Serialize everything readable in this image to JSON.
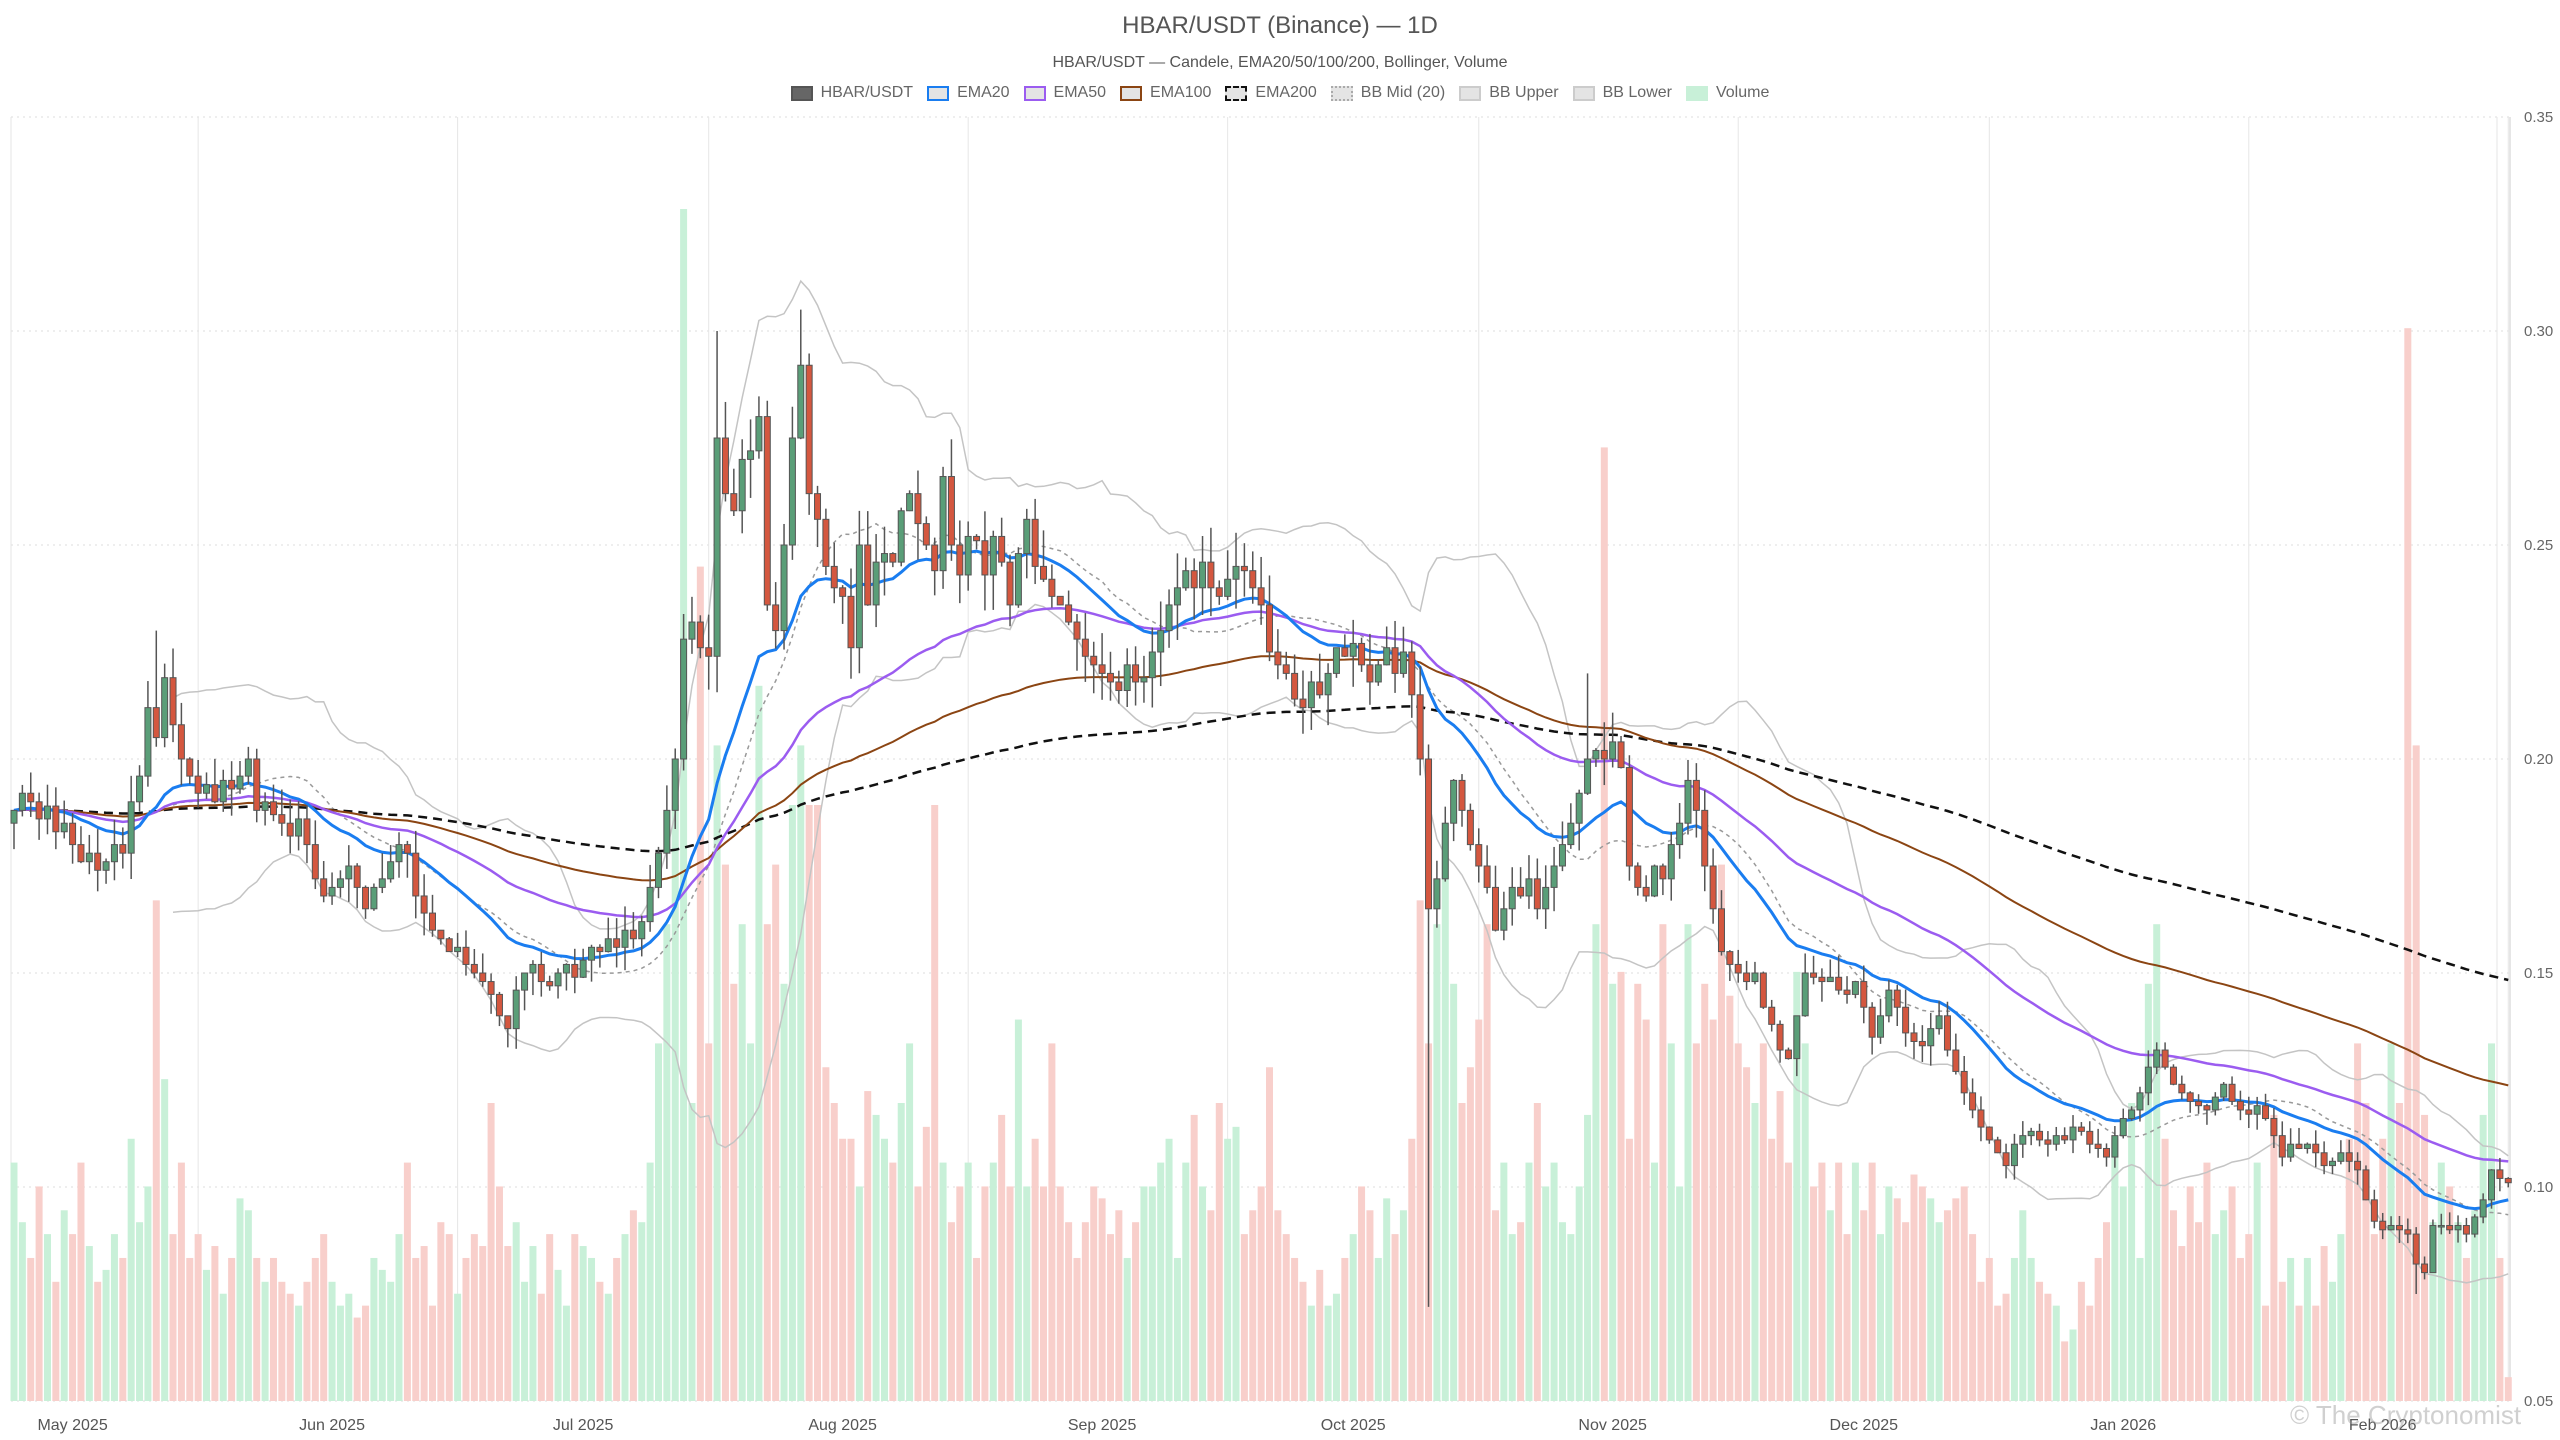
{
  "title": "HBAR/USDT (Binance) — 1D",
  "subtitle": "HBAR/USDT — Candele, EMA20/50/100/200, Bollinger, Volume",
  "watermark": "© The Cryptonomist",
  "legend": [
    {
      "label": "HBAR/USDT",
      "fill": "#666666",
      "border": "#555555",
      "style": "solid"
    },
    {
      "label": "EMA20",
      "fill": "#e4e4e4",
      "border": "#1a7df0",
      "style": "solid"
    },
    {
      "label": "EMA50",
      "fill": "#e4e4e4",
      "border": "#9b5cf0",
      "style": "solid"
    },
    {
      "label": "EMA100",
      "fill": "#e4e4e4",
      "border": "#8b4513",
      "style": "solid"
    },
    {
      "label": "EMA200",
      "fill": "#e4e4e4",
      "border": "#111111",
      "style": "dashed"
    },
    {
      "label": "BB Mid (20)",
      "fill": "#e4e4e4",
      "border": "#aaaaaa",
      "style": "dotted"
    },
    {
      "label": "BB Upper",
      "fill": "#e4e4e4",
      "border": "#cccccc",
      "style": "solid"
    },
    {
      "label": "BB Lower",
      "fill": "#e4e4e4",
      "border": "#cccccc",
      "style": "solid"
    },
    {
      "label": "Volume",
      "fill": "#c8f0d8",
      "border": "#c8f0d8",
      "style": "solid"
    }
  ],
  "chart_data": {
    "type": "candlestick",
    "title": "HBAR/USDT (Binance) — 1D",
    "ylim": [
      0.05,
      0.35
    ],
    "y_ticks": [
      "0.05",
      "0.10",
      "0.15",
      "0.20",
      "0.25",
      "0.30",
      "0.35"
    ],
    "x_ticks": [
      "May 2025",
      "Jun 2025",
      "Jul 2025",
      "Aug 2025",
      "Sep 2025",
      "Oct 2025",
      "Nov 2025",
      "Dec 2025",
      "Jan 2026",
      "Feb 2026"
    ],
    "grid": true,
    "legend_position": "top",
    "colors": {
      "up": "#5a9e78",
      "down": "#d4573f",
      "vol_up": "#c8f0d8",
      "vol_down": "#f8cfcb",
      "ema20": "#1a7df0",
      "ema50": "#9b5cf0",
      "ema100": "#8b4513",
      "ema200": "#111111",
      "bb": "#c4c4c4",
      "bb_mid": "#999999"
    },
    "close": [
      0.188,
      0.192,
      0.19,
      0.186,
      0.189,
      0.183,
      0.185,
      0.18,
      0.176,
      0.178,
      0.174,
      0.176,
      0.18,
      0.178,
      0.19,
      0.196,
      0.212,
      0.205,
      0.219,
      0.208,
      0.2,
      0.196,
      0.192,
      0.194,
      0.19,
      0.195,
      0.193,
      0.196,
      0.2,
      0.188,
      0.19,
      0.187,
      0.185,
      0.182,
      0.186,
      0.18,
      0.172,
      0.168,
      0.17,
      0.172,
      0.175,
      0.17,
      0.165,
      0.17,
      0.172,
      0.176,
      0.18,
      0.178,
      0.168,
      0.164,
      0.16,
      0.158,
      0.155,
      0.156,
      0.152,
      0.15,
      0.148,
      0.145,
      0.14,
      0.137,
      0.146,
      0.15,
      0.152,
      0.148,
      0.147,
      0.15,
      0.152,
      0.149,
      0.153,
      0.156,
      0.155,
      0.158,
      0.156,
      0.16,
      0.158,
      0.162,
      0.17,
      0.178,
      0.188,
      0.2,
      0.228,
      0.232,
      0.226,
      0.224,
      0.275,
      0.262,
      0.258,
      0.27,
      0.272,
      0.28,
      0.236,
      0.23,
      0.25,
      0.275,
      0.292,
      0.262,
      0.256,
      0.245,
      0.24,
      0.238,
      0.226,
      0.25,
      0.236,
      0.246,
      0.248,
      0.246,
      0.258,
      0.262,
      0.255,
      0.25,
      0.244,
      0.266,
      0.25,
      0.243,
      0.252,
      0.251,
      0.243,
      0.252,
      0.246,
      0.236,
      0.248,
      0.256,
      0.245,
      0.242,
      0.238,
      0.236,
      0.232,
      0.228,
      0.224,
      0.222,
      0.22,
      0.218,
      0.216,
      0.222,
      0.218,
      0.219,
      0.225,
      0.23,
      0.236,
      0.24,
      0.244,
      0.24,
      0.246,
      0.24,
      0.238,
      0.242,
      0.245,
      0.244,
      0.24,
      0.236,
      0.225,
      0.222,
      0.22,
      0.214,
      0.212,
      0.218,
      0.215,
      0.22,
      0.226,
      0.224,
      0.227,
      0.222,
      0.218,
      0.222,
      0.226,
      0.22,
      0.225,
      0.215,
      0.2,
      0.165,
      0.172,
      0.185,
      0.195,
      0.188,
      0.18,
      0.175,
      0.17,
      0.16,
      0.165,
      0.17,
      0.168,
      0.172,
      0.165,
      0.17,
      0.175,
      0.18,
      0.185,
      0.192,
      0.2,
      0.202,
      0.2,
      0.204,
      0.198,
      0.175,
      0.17,
      0.168,
      0.175,
      0.172,
      0.18,
      0.185,
      0.195,
      0.188,
      0.175,
      0.165,
      0.155,
      0.152,
      0.15,
      0.148,
      0.15,
      0.142,
      0.138,
      0.132,
      0.13,
      0.14,
      0.15,
      0.149,
      0.148,
      0.149,
      0.146,
      0.145,
      0.148,
      0.142,
      0.135,
      0.14,
      0.146,
      0.142,
      0.136,
      0.134,
      0.133,
      0.137,
      0.14,
      0.132,
      0.127,
      0.122,
      0.118,
      0.114,
      0.111,
      0.108,
      0.105,
      0.11,
      0.112,
      0.113,
      0.111,
      0.11,
      0.112,
      0.111,
      0.114,
      0.113,
      0.11,
      0.109,
      0.107,
      0.112,
      0.116,
      0.118,
      0.122,
      0.128,
      0.132,
      0.128,
      0.124,
      0.122,
      0.12,
      0.119,
      0.118,
      0.121,
      0.124,
      0.12,
      0.118,
      0.117,
      0.119,
      0.116,
      0.112,
      0.107,
      0.11,
      0.109,
      0.11,
      0.108,
      0.105,
      0.106,
      0.108,
      0.106,
      0.104,
      0.097,
      0.092,
      0.09,
      0.091,
      0.09,
      0.089,
      0.082,
      0.08,
      0.091,
      0.091,
      0.09,
      0.091,
      0.089,
      0.093,
      0.097,
      0.104,
      0.102,
      0.101
    ],
    "volume_relative": [
      20,
      15,
      12,
      18,
      14,
      10,
      16,
      14,
      20,
      13,
      10,
      11,
      14,
      12,
      22,
      15,
      18,
      42,
      27,
      14,
      20,
      12,
      14,
      11,
      13,
      9,
      12,
      17,
      16,
      12,
      10,
      12,
      10,
      9,
      8,
      10,
      12,
      14,
      10,
      8,
      9,
      7,
      8,
      12,
      11,
      10,
      14,
      20,
      12,
      13,
      8,
      15,
      14,
      9,
      12,
      14,
      13,
      25,
      18,
      13,
      15,
      10,
      13,
      9,
      14,
      11,
      8,
      14,
      13,
      12,
      10,
      9,
      12,
      14,
      16,
      15,
      20,
      30,
      40,
      50,
      100,
      25,
      70,
      30,
      55,
      45,
      35,
      40,
      30,
      60,
      40,
      45,
      35,
      50,
      55,
      50,
      50,
      28,
      25,
      22,
      22,
      18,
      26,
      24,
      22,
      20,
      25,
      30,
      18,
      23,
      50,
      20,
      15,
      18,
      20,
      12,
      18,
      20,
      24,
      18,
      32,
      18,
      22,
      18,
      30,
      18,
      15,
      12,
      15,
      18,
      17,
      14,
      16,
      12,
      15,
      18,
      18,
      20,
      22,
      12,
      20,
      24,
      18,
      16,
      25,
      22,
      23,
      14,
      16,
      18,
      28,
      16,
      14,
      12,
      10,
      8,
      11,
      8,
      9,
      12,
      14,
      18,
      16,
      12,
      17,
      14,
      16,
      22,
      42,
      30,
      40,
      48,
      35,
      25,
      28,
      32,
      40,
      16,
      20,
      14,
      15,
      20,
      25,
      18,
      20,
      15,
      14,
      18,
      24,
      40,
      80,
      35,
      36,
      22,
      35,
      32,
      20,
      40,
      30,
      18,
      40,
      30,
      35,
      32,
      45,
      34,
      30,
      28,
      25,
      30,
      22,
      26,
      20,
      36,
      30,
      18,
      20,
      16,
      20,
      14,
      20,
      16,
      20,
      14,
      18,
      17,
      15,
      19,
      18,
      17,
      15,
      16,
      17,
      18,
      14,
      10,
      12,
      8,
      9,
      12,
      16,
      12,
      10,
      9,
      8,
      5,
      6,
      10,
      8,
      12,
      15,
      22,
      18,
      25,
      12,
      35,
      40,
      22,
      16,
      13,
      18,
      15,
      20,
      14,
      16,
      18,
      12,
      14,
      20,
      8,
      24,
      10,
      12,
      8,
      12,
      8,
      13,
      10,
      14,
      22,
      30,
      25,
      14,
      22,
      30,
      25,
      90,
      55,
      24,
      15,
      20,
      18,
      15,
      12,
      16,
      24,
      30,
      12,
      2
    ],
    "extreme_wicks": [
      {
        "date": "2025-05-11",
        "high": 0.23
      },
      {
        "date": "2025-07-17",
        "high": 0.3
      },
      {
        "date": "2025-07-27",
        "high": 0.305
      },
      {
        "date": "2025-10-10",
        "low": 0.072
      },
      {
        "date": "2025-10-29",
        "high": 0.22
      },
      {
        "date": "2026-02-05",
        "low": 0.075
      }
    ]
  }
}
